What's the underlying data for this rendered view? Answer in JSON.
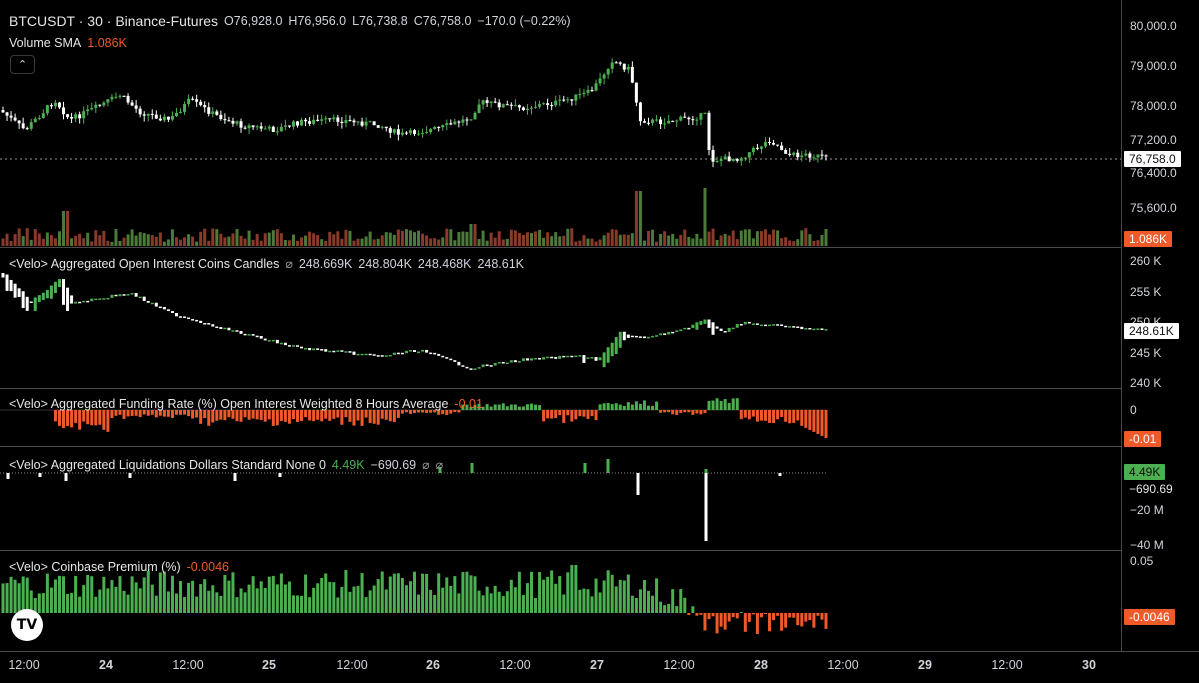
{
  "main": {
    "symbol": "BTCUSDT · 30 · Binance-Futures",
    "open": "O76,928.0",
    "high": "H76,956.0",
    "low": "L76,738.8",
    "close": "C76,758.0",
    "change": "−170.0 (−0.22%)",
    "volume_label": "Volume SMA",
    "volume_value": "1.086K",
    "collapse_glyph": "⌃",
    "price_ticks": [
      "80,000.0",
      "79,000.0",
      "78,000.0",
      "77,200.0",
      "76,400.0",
      "75,600.0"
    ],
    "price_tag": "76,758.0",
    "volume_tag": "1.086K"
  },
  "oi": {
    "label": "<Velo> Aggregated Open Interest Coins Candles",
    "glyph": "⌀",
    "o": "248.669K",
    "h": "248.804K",
    "l": "248.468K",
    "c": "248.61K",
    "ticks": [
      "260 K",
      "255 K",
      "250 K",
      "245 K",
      "240 K"
    ],
    "tag": "248.61K"
  },
  "funding": {
    "label": "<Velo> Aggregated Funding Rate (%) Open Interest Weighted 8 Hours Average",
    "value": "-0.01",
    "ticks": [
      "0"
    ],
    "tag": "-0.01"
  },
  "liq": {
    "label": "<Velo> Aggregated Liquidations Dollars Standard None 0",
    "v1": "4.49K",
    "v2": "−690.69",
    "g1": "⌀",
    "g2": "⌀",
    "ticks": [
      "−20 M",
      "−40 M"
    ],
    "tag_green": "4.49K",
    "tag_dark": "−690.69"
  },
  "premium": {
    "label": "<Velo> Coinbase Premium (%)",
    "value": "-0.0046",
    "ticks": [
      "0.05"
    ],
    "tag": "-0.0046"
  },
  "time_axis": {
    "labels": [
      {
        "text": "12:00",
        "bold": false
      },
      {
        "text": "24",
        "bold": true
      },
      {
        "text": "12:00",
        "bold": false
      },
      {
        "text": "25",
        "bold": true
      },
      {
        "text": "12:00",
        "bold": false
      },
      {
        "text": "26",
        "bold": true
      },
      {
        "text": "12:00",
        "bold": false
      },
      {
        "text": "27",
        "bold": true
      },
      {
        "text": "12:00",
        "bold": false
      },
      {
        "text": "28",
        "bold": true
      },
      {
        "text": "12:00",
        "bold": false
      },
      {
        "text": "29",
        "bold": true
      },
      {
        "text": "12:00",
        "bold": false
      },
      {
        "text": "30",
        "bold": true
      }
    ]
  },
  "logo_text": "TV",
  "colors": {
    "up": "#4caf50",
    "down": "#f0592a",
    "bg": "#000000",
    "neutral": "#ffffff"
  }
}
